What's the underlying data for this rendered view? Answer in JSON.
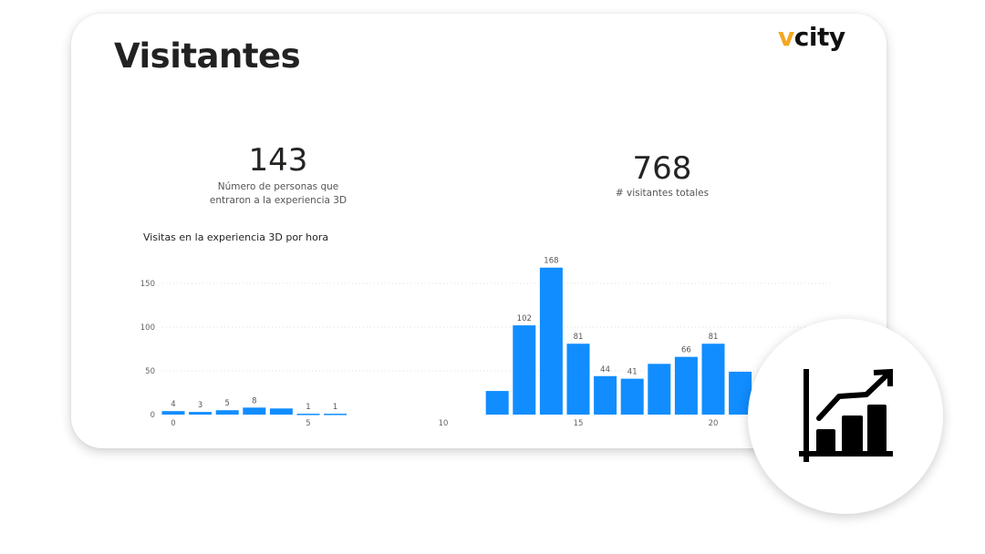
{
  "header": {
    "title": "Visitantes",
    "logo_prefix": "v",
    "logo_rest": "city"
  },
  "kpis": [
    {
      "value": "143",
      "label_line1": "Número de personas que",
      "label_line2": "entraron a la experiencia 3D"
    },
    {
      "value": "768",
      "label_line1": "# visitantes totales"
    }
  ],
  "badge_icon": "growth-chart-icon",
  "chart_data": {
    "type": "bar",
    "title": "Visitas en la experiencia 3D por hora",
    "xlabel": "",
    "ylabel": "",
    "x": [
      0,
      1,
      2,
      3,
      4,
      5,
      6,
      12,
      13,
      14,
      15,
      16,
      17,
      18,
      19,
      20,
      21
    ],
    "values": [
      4,
      3,
      5,
      8,
      7,
      1,
      1,
      27,
      102,
      168,
      81,
      44,
      41,
      58,
      66,
      81,
      49
    ],
    "data_labels": [
      "4",
      "3",
      "5",
      "8",
      null,
      "1",
      "1",
      null,
      "102",
      "168",
      "81",
      "44",
      "41",
      null,
      "66",
      "81",
      null
    ],
    "xticks": [
      "0",
      "5",
      "10",
      "15",
      "20"
    ],
    "yticks": [
      "0",
      "50",
      "100",
      "150"
    ],
    "ylim": [
      0,
      175
    ],
    "xlim": [
      0,
      24
    ],
    "grid": true,
    "bar_color": "#118dff"
  }
}
